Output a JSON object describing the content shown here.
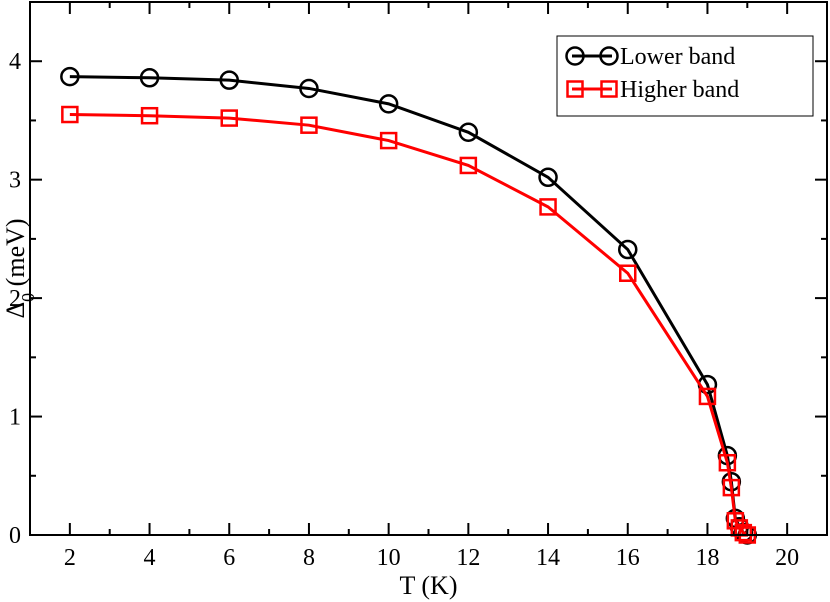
{
  "chart_data": {
    "type": "line",
    "xlabel": "T (K)",
    "ylabel_main": "Δ",
    "ylabel_sub": "0",
    "ylabel_unit": " (meV)",
    "xlim": [
      1,
      21
    ],
    "ylim": [
      0,
      4.5
    ],
    "xticks": [
      2,
      4,
      6,
      8,
      10,
      12,
      14,
      16,
      18,
      20
    ],
    "yticks": [
      0,
      1,
      2,
      3,
      4
    ],
    "grid": false,
    "legend_position": "top-right",
    "series": [
      {
        "name": "Lower band",
        "color": "#000000",
        "marker": "circle",
        "x": [
          2,
          4,
          6,
          8,
          10,
          12,
          14,
          16,
          18,
          18.5,
          18.6,
          18.7,
          18.8,
          18.9,
          19.0
        ],
        "y": [
          3.87,
          3.86,
          3.84,
          3.77,
          3.64,
          3.4,
          3.02,
          2.41,
          1.27,
          0.67,
          0.45,
          0.14,
          0.07,
          0.02,
          0.0
        ]
      },
      {
        "name": "Higher band",
        "color": "#ff0000",
        "marker": "square",
        "x": [
          2,
          4,
          6,
          8,
          10,
          12,
          14,
          16,
          18,
          18.5,
          18.6,
          18.7,
          18.8,
          18.9,
          19.0
        ],
        "y": [
          3.55,
          3.54,
          3.52,
          3.46,
          3.33,
          3.12,
          2.77,
          2.21,
          1.17,
          0.61,
          0.4,
          0.12,
          0.06,
          0.02,
          0.0
        ]
      }
    ]
  }
}
